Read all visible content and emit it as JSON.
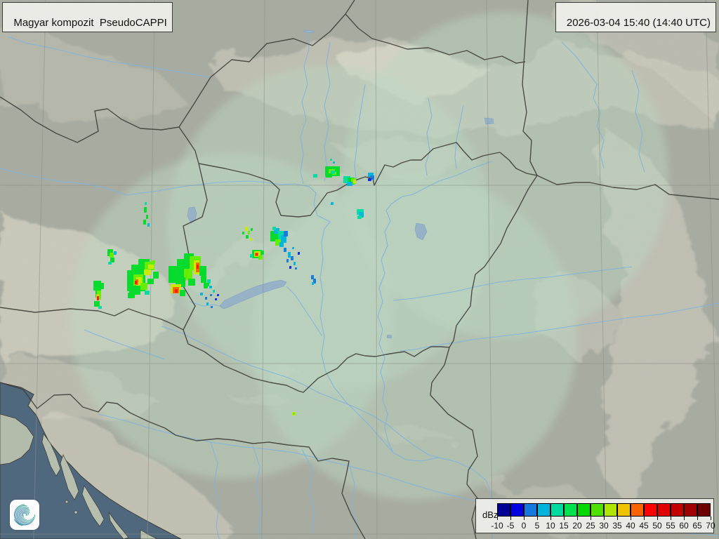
{
  "header": {
    "product_label": "Magyar kompozit  PseudoCAPPI",
    "timestamp_label": "2026-03-04 15:40 (14:40 UTC)"
  },
  "legend": {
    "unit_label": "dBz",
    "tick_values": [
      "-10",
      "-5",
      "0",
      "5",
      "10",
      "15",
      "20",
      "25",
      "30",
      "35",
      "40",
      "45",
      "50",
      "55",
      "60",
      "65",
      "70"
    ],
    "colors": [
      "#000096",
      "#0000E1",
      "#1478DC",
      "#00B4DC",
      "#00DCA0",
      "#00E150",
      "#00D800",
      "#50E100",
      "#AFE600",
      "#F0C300",
      "#FA6400",
      "#FF0000",
      "#E10000",
      "#C30000",
      "#A00000",
      "#6E0000"
    ]
  },
  "logo": {
    "name": "hungaromet-spiral-logo"
  },
  "map": {
    "accent_colors": {
      "land_outer": "#a8aca0",
      "land_radar_tint": "#bedcc6",
      "sea": "#50687e",
      "river": "#82b4dd",
      "border": "#3d3c37",
      "mountain": "#dcd8c8"
    },
    "palette": {
      "G": "#00DC28",
      "L": "#64F000",
      "Y": "#C8EC00",
      "y": "#F0C800",
      "O": "#FA6400",
      "R": "#FF1400",
      "C": "#00B4DC",
      "T": "#00DCA0",
      "B": "#1478DC",
      "b": "#0A28E6"
    },
    "echoes": [
      [
        205,
        295,
        4,
        8,
        "G"
      ],
      [
        208,
        306,
        3,
        6,
        "G"
      ],
      [
        204,
        313,
        4,
        7,
        "G"
      ],
      [
        210,
        318,
        3,
        5,
        "C"
      ],
      [
        206,
        288,
        3,
        4,
        "T"
      ],
      [
        153,
        355,
        8,
        10,
        "G"
      ],
      [
        156,
        360,
        6,
        7,
        "L"
      ],
      [
        162,
        358,
        4,
        5,
        "C"
      ],
      [
        157,
        367,
        6,
        7,
        "G"
      ],
      [
        154,
        373,
        5,
        4,
        "T"
      ],
      [
        133,
        400,
        11,
        14,
        "G"
      ],
      [
        136,
        407,
        8,
        17,
        "G"
      ],
      [
        138,
        414,
        6,
        13,
        "L"
      ],
      [
        137,
        419,
        4,
        9,
        "y"
      ],
      [
        138,
        422,
        3,
        6,
        "R"
      ],
      [
        134,
        429,
        8,
        8,
        "G"
      ],
      [
        143,
        403,
        5,
        9,
        "G"
      ],
      [
        140,
        436,
        5,
        4,
        "T"
      ],
      [
        181,
        385,
        26,
        30,
        "G"
      ],
      [
        187,
        377,
        20,
        14,
        "G"
      ],
      [
        197,
        369,
        16,
        10,
        "G"
      ],
      [
        206,
        373,
        14,
        12,
        "L"
      ],
      [
        190,
        391,
        14,
        20,
        "L"
      ],
      [
        194,
        395,
        8,
        13,
        "Y"
      ],
      [
        193,
        398,
        4,
        8,
        "O"
      ],
      [
        192,
        400,
        3,
        5,
        "R"
      ],
      [
        205,
        384,
        10,
        8,
        "Y"
      ],
      [
        211,
        377,
        8,
        6,
        "Y"
      ],
      [
        215,
        371,
        6,
        5,
        "L"
      ],
      [
        184,
        407,
        16,
        13,
        "G"
      ],
      [
        200,
        403,
        10,
        10,
        "L"
      ],
      [
        182,
        417,
        10,
        8,
        "G"
      ],
      [
        210,
        397,
        9,
        8,
        "G"
      ],
      [
        218,
        387,
        8,
        10,
        "G"
      ],
      [
        206,
        414,
        7,
        6,
        "T"
      ],
      [
        240,
        379,
        22,
        24,
        "G"
      ],
      [
        252,
        369,
        18,
        16,
        "G"
      ],
      [
        262,
        361,
        14,
        12,
        "G"
      ],
      [
        270,
        365,
        16,
        20,
        "L"
      ],
      [
        276,
        371,
        8,
        20,
        "Y"
      ],
      [
        279,
        374,
        5,
        14,
        "O"
      ],
      [
        280,
        377,
        3,
        6,
        "R"
      ],
      [
        284,
        379,
        10,
        14,
        "G"
      ],
      [
        262,
        383,
        12,
        16,
        "L"
      ],
      [
        250,
        395,
        14,
        14,
        "G"
      ],
      [
        243,
        405,
        15,
        13,
        "Y"
      ],
      [
        246,
        409,
        9,
        9,
        "O"
      ],
      [
        249,
        412,
        4,
        5,
        "R"
      ],
      [
        256,
        413,
        8,
        9,
        "G"
      ],
      [
        268,
        397,
        10,
        10,
        "G"
      ],
      [
        286,
        393,
        8,
        10,
        "G"
      ],
      [
        290,
        403,
        6,
        8,
        "G"
      ],
      [
        295,
        398,
        5,
        6,
        "T"
      ],
      [
        285,
        417,
        4,
        4,
        "C"
      ],
      [
        292,
        423,
        3,
        4,
        "B"
      ],
      [
        299,
        419,
        3,
        3,
        "B"
      ],
      [
        294,
        431,
        3,
        4,
        "C"
      ],
      [
        300,
        436,
        3,
        3,
        "B"
      ],
      [
        306,
        425,
        3,
        3,
        "b"
      ],
      [
        293,
        403,
        5,
        5,
        "G"
      ],
      [
        298,
        407,
        4,
        4,
        "C"
      ],
      [
        303,
        413,
        3,
        4,
        "T"
      ],
      [
        309,
        419,
        3,
        3,
        "b"
      ],
      [
        349,
        323,
        4,
        6,
        "Y"
      ],
      [
        353,
        329,
        3,
        5,
        "L"
      ],
      [
        357,
        325,
        3,
        4,
        "G"
      ],
      [
        350,
        335,
        4,
        5,
        "G"
      ],
      [
        356,
        339,
        3,
        4,
        "Y"
      ],
      [
        345,
        330,
        3,
        4,
        "G"
      ],
      [
        359,
        356,
        14,
        12,
        "G"
      ],
      [
        362,
        358,
        9,
        8,
        "Y"
      ],
      [
        363,
        360,
        5,
        5,
        "O"
      ],
      [
        364,
        361,
        3,
        3,
        "R"
      ],
      [
        368,
        364,
        6,
        6,
        "L"
      ],
      [
        372,
        357,
        4,
        6,
        "G"
      ],
      [
        356,
        362,
        4,
        5,
        "T"
      ],
      [
        385,
        329,
        12,
        15,
        "G"
      ],
      [
        390,
        325,
        8,
        8,
        "C"
      ],
      [
        396,
        329,
        8,
        13,
        "T"
      ],
      [
        400,
        335,
        8,
        11,
        "C"
      ],
      [
        404,
        329,
        6,
        8,
        "B"
      ],
      [
        392,
        341,
        8,
        9,
        "L"
      ],
      [
        398,
        345,
        6,
        7,
        "C"
      ],
      [
        388,
        323,
        5,
        5,
        "T"
      ],
      [
        404,
        353,
        4,
        6,
        "B"
      ],
      [
        410,
        359,
        4,
        8,
        "C"
      ],
      [
        408,
        369,
        3,
        5,
        "B"
      ],
      [
        414,
        365,
        4,
        6,
        "B"
      ],
      [
        418,
        373,
        3,
        5,
        "C"
      ],
      [
        412,
        379,
        3,
        4,
        "b"
      ],
      [
        420,
        381,
        3,
        3,
        "B"
      ],
      [
        424,
        359,
        3,
        4,
        "b"
      ],
      [
        416,
        352,
        3,
        3,
        "C"
      ],
      [
        443,
        392,
        4,
        6,
        "B"
      ],
      [
        446,
        397,
        4,
        7,
        "B"
      ],
      [
        444,
        402,
        3,
        4,
        "C"
      ],
      [
        470,
        226,
        3,
        3,
        "T"
      ],
      [
        474,
        230,
        3,
        3,
        "C"
      ],
      [
        463,
        237,
        21,
        14,
        "G"
      ],
      [
        468,
        241,
        11,
        8,
        "L"
      ],
      [
        471,
        243,
        6,
        5,
        "T"
      ],
      [
        477,
        239,
        6,
        6,
        "G"
      ],
      [
        464,
        247,
        9,
        6,
        "G"
      ],
      [
        489,
        251,
        10,
        10,
        "T"
      ],
      [
        495,
        253,
        10,
        10,
        "G"
      ],
      [
        500,
        254,
        7,
        8,
        "L"
      ],
      [
        503,
        256,
        4,
        5,
        "Y"
      ],
      [
        494,
        259,
        8,
        6,
        "C"
      ],
      [
        446,
        248,
        6,
        5,
        "T"
      ],
      [
        524,
        246,
        8,
        6,
        "C"
      ],
      [
        527,
        250,
        6,
        6,
        "B"
      ],
      [
        524,
        254,
        5,
        4,
        "b"
      ],
      [
        471,
        288,
        4,
        4,
        "C"
      ],
      [
        508,
        298,
        10,
        8,
        "T"
      ],
      [
        511,
        302,
        7,
        8,
        "C"
      ],
      [
        509,
        307,
        6,
        5,
        "T"
      ],
      [
        416,
        587,
        5,
        5,
        "Y"
      ],
      [
        417,
        588,
        3,
        3,
        "L"
      ]
    ]
  }
}
